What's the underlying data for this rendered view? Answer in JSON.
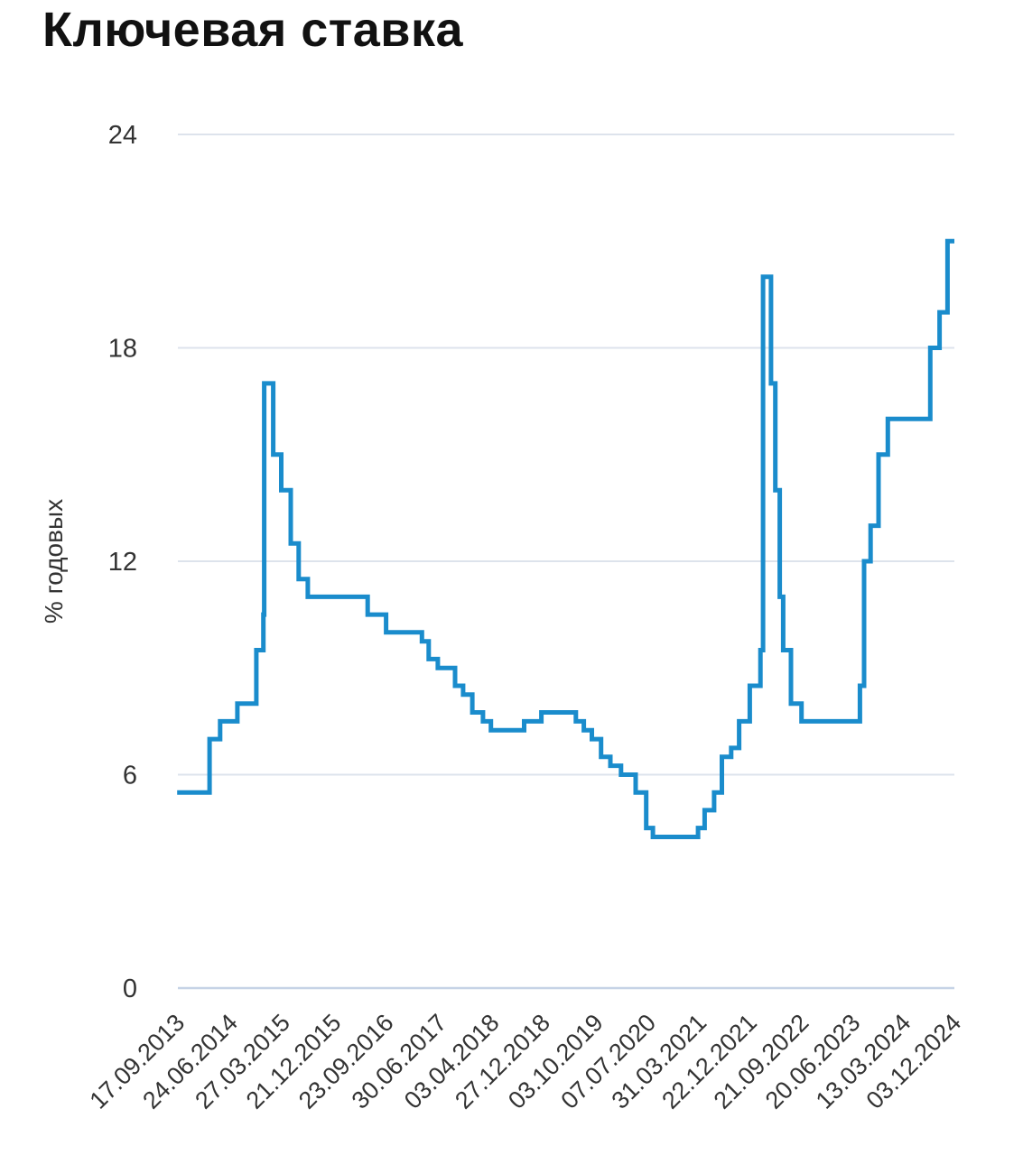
{
  "page_title": "Ключевая ставка",
  "chart_data": {
    "type": "line",
    "step": true,
    "title": "Ключевая ставка",
    "xlabel": "",
    "ylabel": "% годовых",
    "ylim": [
      0,
      24
    ],
    "yticks": [
      0,
      6,
      12,
      18,
      24
    ],
    "grid": true,
    "xticks": [
      "17.09.2013",
      "24.06.2014",
      "27.03.2015",
      "21.12.2015",
      "23.09.2016",
      "30.06.2017",
      "03.04.2018",
      "27.12.2018",
      "03.10.2019",
      "07.07.2020",
      "31.03.2021",
      "22.12.2021",
      "21.09.2022",
      "20.06.2023",
      "13.03.2024",
      "03.12.2024"
    ],
    "line_color": "#1a8ccc",
    "series": [
      {
        "x": [
          "2013-09-13",
          "2014-03-03",
          "2014-04-28",
          "2014-07-28",
          "2014-11-05",
          "2014-12-12",
          "2014-12-16",
          "2015-02-02",
          "2015-03-16",
          "2015-05-05",
          "2015-06-16",
          "2015-08-03",
          "2016-06-14",
          "2016-09-19",
          "2017-03-27",
          "2017-05-02",
          "2017-06-19",
          "2017-09-18",
          "2017-10-30",
          "2017-12-18",
          "2018-02-12",
          "2018-03-26",
          "2018-09-17",
          "2018-12-17",
          "2019-06-17",
          "2019-07-29",
          "2019-09-09",
          "2019-10-28",
          "2019-12-16",
          "2020-02-10",
          "2020-04-27",
          "2020-06-22",
          "2020-07-27",
          "2021-03-22",
          "2021-04-26",
          "2021-06-15",
          "2021-07-26",
          "2021-09-13",
          "2021-10-25",
          "2021-12-20",
          "2022-02-14",
          "2022-02-28",
          "2022-04-11",
          "2022-05-04",
          "2022-05-27",
          "2022-06-14",
          "2022-07-25",
          "2022-09-19",
          "2023-07-24",
          "2023-08-15",
          "2023-09-18",
          "2023-10-30",
          "2023-12-18",
          "2024-07-29",
          "2024-09-16",
          "2024-10-28",
          "2024-12-03"
        ],
        "y": [
          5.5,
          7.0,
          7.5,
          8.0,
          9.5,
          10.5,
          17.0,
          15.0,
          14.0,
          12.5,
          11.5,
          11.0,
          10.5,
          10.0,
          9.75,
          9.25,
          9.0,
          8.5,
          8.25,
          7.75,
          7.5,
          7.25,
          7.5,
          7.75,
          7.5,
          7.25,
          7.0,
          6.5,
          6.25,
          6.0,
          5.5,
          4.5,
          4.25,
          4.5,
          5.0,
          5.5,
          6.5,
          6.75,
          7.5,
          8.5,
          9.5,
          20.0,
          17.0,
          14.0,
          11.0,
          9.5,
          8.0,
          7.5,
          8.5,
          12.0,
          13.0,
          15.0,
          16.0,
          18.0,
          19.0,
          21.0,
          21.0
        ]
      }
    ]
  }
}
